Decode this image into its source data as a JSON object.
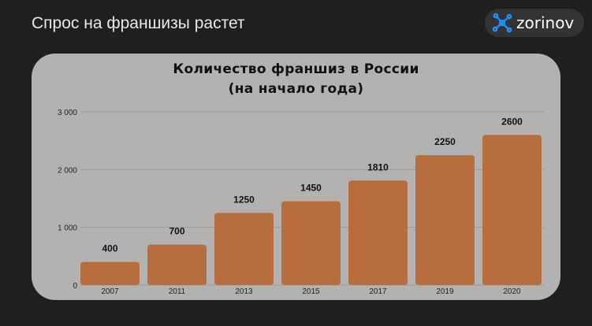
{
  "header": {
    "title": "Спрос на франшизы растет",
    "logo_text": "zorinov",
    "logo_icon": "molecule-icon",
    "logo_color": "#1e8fff"
  },
  "chart_data": {
    "type": "bar",
    "title_line1": "Количество франшиз в России",
    "title_line2": "(на начало года)",
    "categories": [
      "2007",
      "2011",
      "2013",
      "2015",
      "2017",
      "2019",
      "2020"
    ],
    "values": [
      400,
      700,
      1250,
      1450,
      1810,
      2250,
      2600
    ],
    "ylim": [
      0,
      3000
    ],
    "yticks": [
      0,
      1000,
      2000,
      3000
    ],
    "ytick_labels": [
      "0",
      "1 000",
      "2 000",
      "3 000"
    ],
    "grid": true,
    "bar_color": "#b86d3e",
    "xlabel": "",
    "ylabel": ""
  }
}
